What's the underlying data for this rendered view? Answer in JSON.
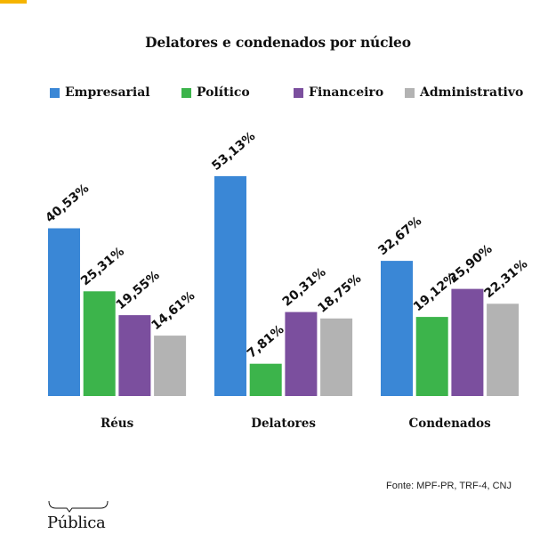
{
  "accent_color": "#f5b400",
  "chart_data": {
    "type": "bar",
    "title": "Delatores e condenados por núcleo",
    "categories": [
      "Réus",
      "Delatores",
      "Condenados"
    ],
    "series": [
      {
        "name": "Empresarial",
        "color": "#3a87d6",
        "values": [
          40.53,
          53.13,
          32.67
        ],
        "labels": [
          "40,53%",
          "53,13%",
          "32,67%"
        ]
      },
      {
        "name": "Político",
        "color": "#3cb44b",
        "values": [
          25.31,
          7.81,
          19.12
        ],
        "labels": [
          "25,31%",
          "7,81%",
          "19,12%"
        ]
      },
      {
        "name": "Financeiro",
        "color": "#7b4f9e",
        "values": [
          19.55,
          20.31,
          25.9
        ],
        "labels": [
          "19,55%",
          "20,31%",
          "25,90%"
        ]
      },
      {
        "name": "Administrativo",
        "color": "#b3b3b3",
        "values": [
          14.61,
          18.75,
          22.31
        ],
        "labels": [
          "14,61%",
          "18,75%",
          "22,31%"
        ]
      }
    ],
    "xlabel": "",
    "ylabel": "",
    "ylim": [
      0,
      55
    ],
    "grid": false,
    "legend_position": "top",
    "value_label_rotation": "diagonal"
  },
  "source": "Fonte: MPF-PR, TRF-4, CNJ",
  "logo": "Pública"
}
